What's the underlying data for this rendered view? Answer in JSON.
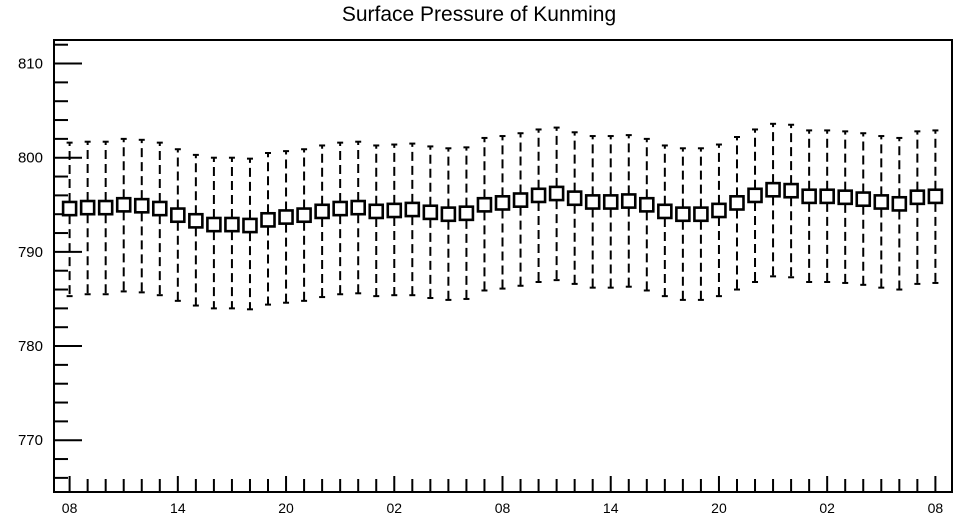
{
  "chart_data": {
    "type": "box",
    "title": "Surface Pressure of Kunming",
    "xlabel": "",
    "ylabel": "",
    "ylim": [
      764.5,
      812.5
    ],
    "yticks": [
      770,
      780,
      790,
      800,
      810
    ],
    "x_tick_labels": [
      "08",
      "14",
      "20",
      "02",
      "08",
      "14",
      "20",
      "02",
      "08"
    ],
    "x_tick_every": 6,
    "grid": false,
    "series": [
      {
        "median": [
          794.6,
          794.7,
          794.7,
          795.0,
          794.9,
          794.6,
          793.9,
          793.3,
          792.9,
          792.9,
          792.8,
          793.4,
          793.7,
          793.9,
          794.3,
          794.6,
          794.7,
          794.3,
          794.4,
          794.5,
          794.2,
          794.0,
          794.1,
          795.0,
          795.2,
          795.5,
          796.0,
          796.2,
          795.7,
          795.3,
          795.3,
          795.4,
          795.0,
          794.3,
          794.0,
          794.0,
          794.4,
          795.2,
          796.0,
          796.6,
          796.5,
          795.9,
          795.9,
          795.8,
          795.6,
          795.3,
          795.1,
          795.8,
          795.9
        ],
        "q1": [
          793.9,
          794.0,
          794.0,
          794.3,
          794.2,
          793.9,
          793.2,
          792.6,
          792.2,
          792.2,
          792.1,
          792.7,
          793.0,
          793.2,
          793.6,
          793.9,
          794.0,
          793.6,
          793.7,
          793.8,
          793.5,
          793.3,
          793.4,
          794.3,
          794.5,
          794.8,
          795.3,
          795.5,
          795.0,
          794.6,
          794.6,
          794.7,
          794.3,
          793.6,
          793.3,
          793.3,
          793.7,
          794.5,
          795.3,
          795.9,
          795.8,
          795.2,
          795.2,
          795.1,
          794.9,
          794.6,
          794.4,
          795.1,
          795.2
        ],
        "q3": [
          795.3,
          795.4,
          795.4,
          795.7,
          795.6,
          795.3,
          794.6,
          794.0,
          793.6,
          793.6,
          793.5,
          794.1,
          794.4,
          794.6,
          795.0,
          795.3,
          795.4,
          795.0,
          795.1,
          795.2,
          794.9,
          794.7,
          794.8,
          795.7,
          795.9,
          796.2,
          796.7,
          796.9,
          796.4,
          796.0,
          796.0,
          796.1,
          795.7,
          795.0,
          794.7,
          794.7,
          795.1,
          795.9,
          796.7,
          797.3,
          797.2,
          796.6,
          796.6,
          796.5,
          796.3,
          796.0,
          795.8,
          796.5,
          796.6
        ],
        "whisker_low": [
          785.3,
          785.5,
          785.5,
          785.8,
          785.7,
          785.4,
          784.8,
          784.3,
          784.0,
          784.0,
          783.9,
          784.4,
          784.6,
          784.8,
          785.2,
          785.5,
          785.6,
          785.3,
          785.4,
          785.4,
          785.1,
          784.9,
          785.0,
          785.9,
          786.1,
          786.4,
          786.8,
          787.0,
          786.6,
          786.2,
          786.2,
          786.3,
          785.9,
          785.3,
          784.9,
          784.9,
          785.3,
          786.0,
          786.8,
          787.4,
          787.3,
          786.8,
          786.8,
          786.7,
          786.5,
          786.2,
          786.0,
          786.6,
          786.7
        ],
        "whisker_high": [
          801.6,
          801.7,
          801.7,
          802.0,
          801.9,
          801.6,
          800.9,
          800.3,
          800.0,
          800.0,
          799.9,
          800.5,
          800.7,
          800.9,
          801.3,
          801.6,
          801.7,
          801.3,
          801.4,
          801.5,
          801.2,
          801.0,
          801.1,
          802.1,
          802.3,
          802.6,
          803.0,
          803.2,
          802.7,
          802.3,
          802.3,
          802.4,
          802.0,
          801.3,
          801.0,
          801.0,
          801.4,
          802.2,
          803.0,
          803.6,
          803.5,
          802.9,
          802.9,
          802.8,
          802.6,
          802.3,
          802.1,
          802.8,
          802.9
        ]
      }
    ]
  }
}
